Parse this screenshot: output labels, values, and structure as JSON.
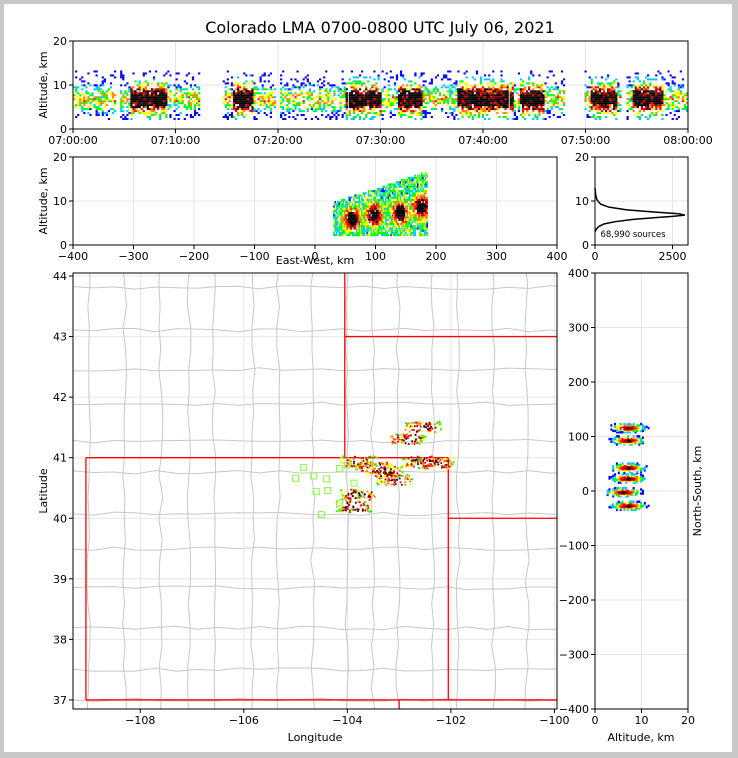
{
  "title": "Colorado LMA 0700-0800 UTC July 06, 2021",
  "colors": {
    "density": [
      "#ffffff",
      "#0000ff",
      "#00c8ff",
      "#00ff00",
      "#ffff00",
      "#ff8000",
      "#ff0000",
      "#800000",
      "#000000"
    ],
    "state_border": "#ff0000",
    "county_border": "#c8c8c8",
    "station": "#80ff40",
    "grid": "#e6e6e6"
  },
  "chart_data": [
    {
      "id": "time-height",
      "type": "heatmap",
      "ylabel": "Altitude, km",
      "xlabel": "",
      "ylim": [
        0,
        20
      ],
      "yticks": [
        "0",
        "10",
        "20"
      ],
      "xticks": [
        "07:00:00",
        "07:10:00",
        "07:20:00",
        "07:30:00",
        "07:40:00",
        "07:50:00",
        "08:00:00"
      ],
      "xlim_minutes": [
        0,
        60
      ],
      "active_segments_minutes": [
        [
          0,
          4.2
        ],
        [
          4.6,
          9.4
        ],
        [
          9.8,
          12.2
        ],
        [
          14.6,
          19.7
        ],
        [
          20.2,
          26.6
        ],
        [
          26.9,
          42.4
        ],
        [
          42.6,
          47.9
        ],
        [
          49.9,
          53.4
        ],
        [
          54.0,
          60.0
        ]
      ],
      "core_altitude_km": [
        4,
        10
      ],
      "strong_bursts_minutes": [
        [
          5.5,
          9
        ],
        [
          15.5,
          17.5
        ],
        [
          26.5,
          30
        ],
        [
          31.5,
          34
        ],
        [
          37.5,
          43
        ],
        [
          43.5,
          46
        ],
        [
          50.5,
          53
        ],
        [
          54.5,
          57.5
        ]
      ]
    },
    {
      "id": "ew-height",
      "type": "heatmap",
      "xlabel": "East-West, km",
      "ylabel": "Altitude, km",
      "xlim": [
        -400,
        400
      ],
      "ylim": [
        0,
        20
      ],
      "xticks": [
        "−400",
        "−300",
        "−200",
        "−100",
        "0",
        "100",
        "200",
        "300",
        "400"
      ],
      "yticks": [
        "0",
        "10",
        "20"
      ],
      "storm_range_km": [
        30,
        185
      ],
      "core_altitude_km": [
        3,
        14
      ],
      "hot_spots_km": [
        [
          60,
          6
        ],
        [
          97,
          7
        ],
        [
          140,
          7.5
        ],
        [
          175,
          9
        ]
      ]
    },
    {
      "id": "altitude-histogram",
      "type": "line",
      "xlim": [
        0,
        3000
      ],
      "ylim": [
        0,
        20
      ],
      "xticks": [
        "0",
        "2500"
      ],
      "yticks": [
        "0",
        "10",
        "20"
      ],
      "annotation": "68,990 sources",
      "x": [
        0,
        40,
        120,
        300,
        650,
        1200,
        1900,
        2500,
        2900,
        2700,
        1900,
        1000,
        450,
        180,
        60,
        20,
        0
      ],
      "y": [
        3,
        3.6,
        4.2,
        4.8,
        5.3,
        5.8,
        6.2,
        6.5,
        6.8,
        7.1,
        7.5,
        8.0,
        8.6,
        9.3,
        10.3,
        11.5,
        13
      ]
    },
    {
      "id": "plan-map",
      "type": "scatter",
      "xlabel": "Longitude",
      "ylabel": "Latitude",
      "xlim": [
        -109.3,
        -99.95
      ],
      "ylim": [
        36.85,
        44.05
      ],
      "xticks": [
        "−108",
        "−106",
        "−104",
        "−102",
        "−100"
      ],
      "yticks": [
        "37",
        "38",
        "39",
        "40",
        "41",
        "42",
        "43",
        "44"
      ],
      "stations": [
        [
          -104.85,
          40.84
        ],
        [
          -104.65,
          40.7
        ],
        [
          -105.0,
          40.66
        ],
        [
          -104.4,
          40.65
        ],
        [
          -104.6,
          40.44
        ],
        [
          -104.38,
          40.46
        ],
        [
          -103.87,
          40.58
        ],
        [
          -104.15,
          40.82
        ],
        [
          -104.0,
          40.88
        ],
        [
          -104.15,
          40.25
        ],
        [
          -104.5,
          40.06
        ],
        [
          -103.75,
          40.4
        ]
      ],
      "sources": [
        [
          -103.8,
          40.95
        ],
        [
          -103.5,
          40.85
        ],
        [
          -103.1,
          40.65
        ],
        [
          -102.6,
          40.95
        ],
        [
          -103.8,
          40.4
        ],
        [
          -102.55,
          41.52
        ],
        [
          -102.85,
          41.33
        ],
        [
          -103.3,
          40.78
        ],
        [
          -102.3,
          40.92
        ],
        [
          -103.9,
          40.2
        ]
      ]
    },
    {
      "id": "ns-height",
      "type": "heatmap",
      "xlabel": "Altitude, km",
      "ylabel": "North-South, km",
      "xlim": [
        0,
        20
      ],
      "ylim": [
        -400,
        400
      ],
      "xticks": [
        "0",
        "10",
        "20"
      ],
      "yticks": [
        "−400",
        "−300",
        "−200",
        "−100",
        "0",
        "100",
        "200",
        "300",
        "400"
      ],
      "blobs_km": [
        [
          7,
          118
        ],
        [
          7,
          95
        ],
        [
          7,
          45
        ],
        [
          7,
          25
        ],
        [
          6,
          0
        ],
        [
          7,
          -25
        ]
      ]
    }
  ]
}
